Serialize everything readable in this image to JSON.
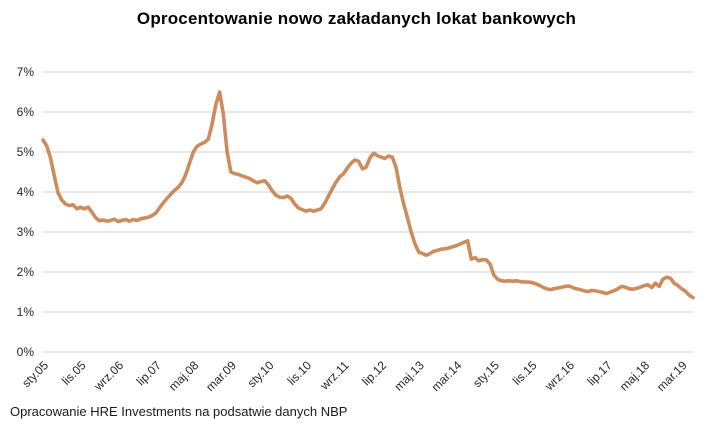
{
  "title": "Oprocentowanie nowo zakładanych lokat bankowych",
  "footer": "Opracowanie HRE Investments na podsatwie danych NBP",
  "colors": {
    "line": "#CC8C5E",
    "grid": "#D9D9D9",
    "axis_text": "#262626",
    "title_text": "#000000",
    "background": "#FFFFFF"
  },
  "chart_data": {
    "type": "line",
    "title": "Oprocentowanie nowo zakładanych lokat bankowych",
    "xlabel": "",
    "ylabel": "",
    "ylim": [
      0,
      7
    ],
    "y_tick_labels": [
      "0%",
      "1%",
      "2%",
      "3%",
      "4%",
      "5%",
      "6%",
      "7%"
    ],
    "grid": "horizontal",
    "legend": "none",
    "x_unit": "monthly, sty.05 (Jan 2005) through cze.19 (Jun 2019)",
    "x_tick_labels": [
      "sty.05",
      "lis.05",
      "wrz.06",
      "lip.07",
      "maj.08",
      "mar.09",
      "sty.10",
      "lis.10",
      "wrz.11",
      "lip.12",
      "maj.13",
      "mar.14",
      "sty.15",
      "lis.15",
      "wrz.16",
      "lip.17",
      "maj.18",
      "mar.19"
    ],
    "x_tick_month_indices": [
      0,
      10,
      20,
      30,
      40,
      50,
      60,
      70,
      80,
      90,
      100,
      110,
      120,
      130,
      140,
      150,
      160,
      170
    ],
    "series": [
      {
        "name": "Oprocentowanie nowo zakładanych lokat bankowych (%)",
        "values": [
          5.3,
          5.15,
          4.85,
          4.4,
          3.98,
          3.8,
          3.7,
          3.66,
          3.68,
          3.58,
          3.62,
          3.58,
          3.62,
          3.5,
          3.36,
          3.28,
          3.3,
          3.27,
          3.29,
          3.32,
          3.26,
          3.29,
          3.31,
          3.27,
          3.31,
          3.29,
          3.33,
          3.35,
          3.37,
          3.41,
          3.47,
          3.6,
          3.73,
          3.84,
          3.94,
          4.04,
          4.12,
          4.24,
          4.44,
          4.72,
          5.0,
          5.14,
          5.2,
          5.24,
          5.32,
          5.7,
          6.18,
          6.5,
          5.95,
          5.0,
          4.5,
          4.46,
          4.44,
          4.4,
          4.37,
          4.34,
          4.28,
          4.23,
          4.26,
          4.28,
          4.18,
          4.03,
          3.92,
          3.87,
          3.86,
          3.9,
          3.84,
          3.7,
          3.6,
          3.56,
          3.52,
          3.55,
          3.52,
          3.55,
          3.58,
          3.72,
          3.9,
          4.08,
          4.25,
          4.38,
          4.46,
          4.6,
          4.72,
          4.8,
          4.77,
          4.58,
          4.62,
          4.85,
          4.97,
          4.91,
          4.87,
          4.84,
          4.9,
          4.87,
          4.6,
          4.1,
          3.7,
          3.35,
          3.0,
          2.7,
          2.5,
          2.46,
          2.42,
          2.46,
          2.52,
          2.54,
          2.57,
          2.58,
          2.6,
          2.63,
          2.66,
          2.7,
          2.74,
          2.78,
          2.32,
          2.36,
          2.28,
          2.31,
          2.3,
          2.2,
          1.92,
          1.82,
          1.78,
          1.77,
          1.78,
          1.77,
          1.78,
          1.76,
          1.75,
          1.75,
          1.74,
          1.71,
          1.67,
          1.62,
          1.58,
          1.56,
          1.58,
          1.6,
          1.62,
          1.64,
          1.65,
          1.61,
          1.58,
          1.56,
          1.53,
          1.51,
          1.54,
          1.53,
          1.51,
          1.49,
          1.46,
          1.5,
          1.53,
          1.58,
          1.64,
          1.62,
          1.58,
          1.57,
          1.59,
          1.62,
          1.66,
          1.68,
          1.61,
          1.72,
          1.64,
          1.82,
          1.87,
          1.84,
          1.72,
          1.66,
          1.58,
          1.52,
          1.42,
          1.36
        ]
      }
    ]
  }
}
